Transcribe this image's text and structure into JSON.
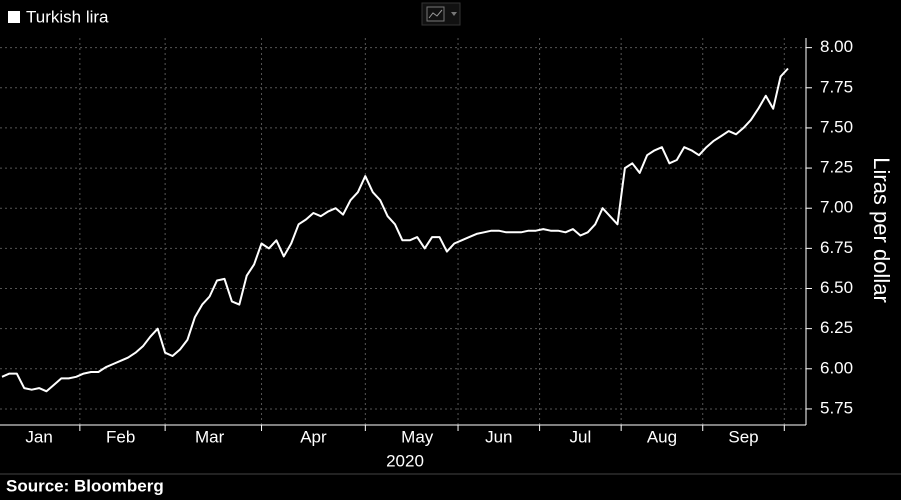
{
  "chart_data": {
    "type": "line",
    "legend_label": "Turkish lira",
    "ylabel": "Liras per dollar",
    "xlabel": "2020",
    "source": "Source: Bloomberg",
    "categories": [
      null,
      null,
      null,
      null,
      null,
      "Jan",
      null,
      null,
      null,
      null,
      null,
      null,
      null,
      null,
      null,
      null,
      "Feb",
      null,
      null,
      null,
      null,
      null,
      null,
      null,
      null,
      null,
      null,
      null,
      "Mar",
      null,
      null,
      null,
      null,
      null,
      null,
      null,
      null,
      null,
      null,
      null,
      null,
      null,
      "Apr",
      null,
      null,
      null,
      null,
      null,
      null,
      null,
      null,
      null,
      null,
      null,
      null,
      null,
      "May",
      null,
      null,
      null,
      null,
      null,
      null,
      null,
      null,
      null,
      null,
      "Jun",
      null,
      null,
      null,
      null,
      null,
      null,
      null,
      null,
      null,
      null,
      "Jul",
      null,
      null,
      null,
      null,
      null,
      null,
      null,
      null,
      null,
      null,
      "Aug",
      null,
      null,
      null,
      null,
      null,
      null,
      null,
      null,
      null,
      null,
      "Sep",
      null,
      null,
      null,
      null,
      null,
      null
    ],
    "series": [
      {
        "name": "Turkish lira",
        "color": "#ffffff",
        "values": [
          5.95,
          5.97,
          5.97,
          5.88,
          5.87,
          5.88,
          5.86,
          5.9,
          5.94,
          5.94,
          5.95,
          5.97,
          5.98,
          5.98,
          6.01,
          6.03,
          6.05,
          6.07,
          6.1,
          6.14,
          6.2,
          6.25,
          6.1,
          6.08,
          6.12,
          6.18,
          6.32,
          6.4,
          6.45,
          6.55,
          6.56,
          6.42,
          6.4,
          6.58,
          6.65,
          6.78,
          6.75,
          6.8,
          6.7,
          6.78,
          6.9,
          6.93,
          6.97,
          6.95,
          6.98,
          7.0,
          6.96,
          7.05,
          7.1,
          7.2,
          7.1,
          7.05,
          6.95,
          6.9,
          6.8,
          6.8,
          6.82,
          6.75,
          6.82,
          6.82,
          6.73,
          6.78,
          6.8,
          6.82,
          6.84,
          6.85,
          6.86,
          6.86,
          6.85,
          6.85,
          6.85,
          6.86,
          6.86,
          6.87,
          6.86,
          6.86,
          6.85,
          6.87,
          6.83,
          6.85,
          6.9,
          7.0,
          6.95,
          6.9,
          7.25,
          7.28,
          7.22,
          7.33,
          7.36,
          7.38,
          7.28,
          7.3,
          7.38,
          7.36,
          7.33,
          7.38,
          7.42,
          7.45,
          7.48,
          7.46,
          7.5,
          7.55,
          7.62,
          7.7,
          7.62,
          7.82,
          7.87
        ]
      }
    ],
    "ylim": [
      5.65,
      8.06
    ],
    "yticks": [
      {
        "value": 5.75,
        "label": "5.75"
      },
      {
        "value": 6,
        "label": "6.00"
      },
      {
        "value": 6.25,
        "label": "6.25"
      },
      {
        "value": 6.5,
        "label": "6.50"
      },
      {
        "value": 6.75,
        "label": "6.75"
      },
      {
        "value": 7,
        "label": "7.00"
      },
      {
        "value": 7.25,
        "label": "7.25"
      },
      {
        "value": 7.5,
        "label": "7.50"
      },
      {
        "value": 7.75,
        "label": "7.75"
      },
      {
        "value": 8,
        "label": "8.00"
      }
    ],
    "grid": true
  }
}
